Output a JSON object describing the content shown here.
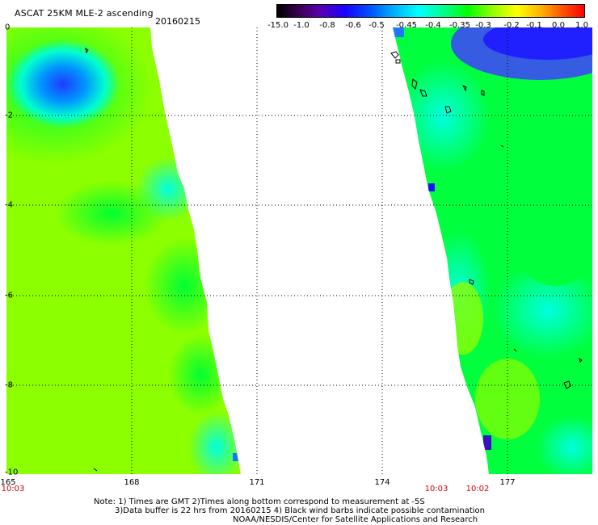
{
  "title": "ASCAT 25KM MLE-2 ascending",
  "date": "20160215",
  "colorbar": {
    "labels": [
      "-15.0",
      "-1.0",
      "-0.8",
      "-0.6",
      "-0.5",
      "-0.45",
      "-0.4",
      "-0.35",
      "-0.3",
      "-0.2",
      "-0.1",
      "0.0",
      "1.0"
    ]
  },
  "axes": {
    "y_ticks": [
      "0",
      "-2",
      "-4",
      "-6",
      "-8",
      "-10"
    ],
    "x_ticks": [
      "165",
      "168",
      "171",
      "174",
      "177"
    ]
  },
  "times": {
    "left": "10:03",
    "right_a": "10:03",
    "right_b": "10:02"
  },
  "notes": {
    "line1": "Note: 1) Times are GMT 2)Times along bottom correspond to measurement at -5S",
    "line2": "3)Data buffer is 22 hrs from 20160215 4) Black wind barbs indicate possible contamination",
    "line3": "NOAA/NESDIS/Center for Satellite Applications and Research"
  },
  "colors": {
    "swath_main": "#8cff00",
    "swath_green": "#00ff3c",
    "swath_cyan": "#00ffd8",
    "swath_blue": "#0078ff",
    "swath_deep": "#1e1eff"
  }
}
